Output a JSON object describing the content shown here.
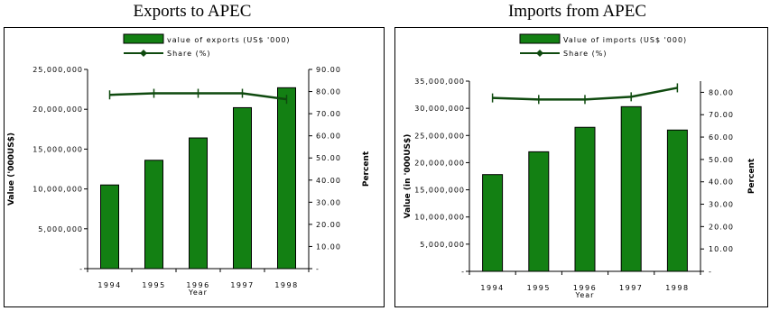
{
  "chart_data": [
    {
      "type": "bar",
      "title": "Exports to APEC",
      "categories": [
        "1994",
        "1995",
        "1996",
        "1997",
        "1998"
      ],
      "series": [
        {
          "name": "value of exports (US$ '000)",
          "type": "bar",
          "axis": "left",
          "values": [
            10500000,
            13600000,
            16400000,
            20200000,
            22700000
          ]
        },
        {
          "name": "Share (%)",
          "type": "line",
          "axis": "right",
          "values": [
            78.5,
            79.2,
            79.2,
            79.2,
            76.5
          ]
        }
      ],
      "xlabel": "Year",
      "ylabel": "Value ('000US$)",
      "y2label": "Percent",
      "ylim": [
        0,
        25000000
      ],
      "y2lim": [
        0,
        90
      ],
      "yticks": [
        "-",
        "5,000,000",
        "10,000,000",
        "15,000,000",
        "20,000,000",
        "25,000,000"
      ],
      "y2ticks": [
        "-",
        "10.00",
        "20.00",
        "30.00",
        "40.00",
        "50.00",
        "60.00",
        "70.00",
        "80.00",
        "90.00"
      ],
      "legend": "top",
      "grid": false,
      "colors": {
        "bar": "#138013",
        "bar_edge": "#000000",
        "line": "#0f4a0f"
      }
    },
    {
      "type": "bar",
      "title": "Imports from APEC",
      "categories": [
        "1994",
        "1995",
        "1996",
        "1997",
        "1998"
      ],
      "series": [
        {
          "name": "Value of imports (US$ '000)",
          "type": "bar",
          "axis": "left",
          "values": [
            17800000,
            22000000,
            26500000,
            30300000,
            26000000
          ]
        },
        {
          "name": "Share (%)",
          "type": "line",
          "axis": "right",
          "values": [
            77.5,
            76.8,
            76.8,
            78.0,
            82.0
          ]
        }
      ],
      "xlabel": "Year",
      "ylabel": "Value (in '000US$)",
      "y2label": "Percent",
      "ylim": [
        0,
        35000000
      ],
      "y2lim": [
        0,
        85
      ],
      "yticks": [
        "-",
        "5,000,000",
        "10,000,000",
        "15,000,000",
        "20,000,000",
        "25,000,000",
        "30,000,000",
        "35,000,000"
      ],
      "y2ticks": [
        "-",
        "10.00",
        "20.00",
        "30.00",
        "40.00",
        "50.00",
        "60.00",
        "70.00",
        "80.00"
      ],
      "legend": "top",
      "grid": false,
      "colors": {
        "bar": "#138013",
        "bar_edge": "#000000",
        "line": "#0f4a0f"
      }
    }
  ]
}
